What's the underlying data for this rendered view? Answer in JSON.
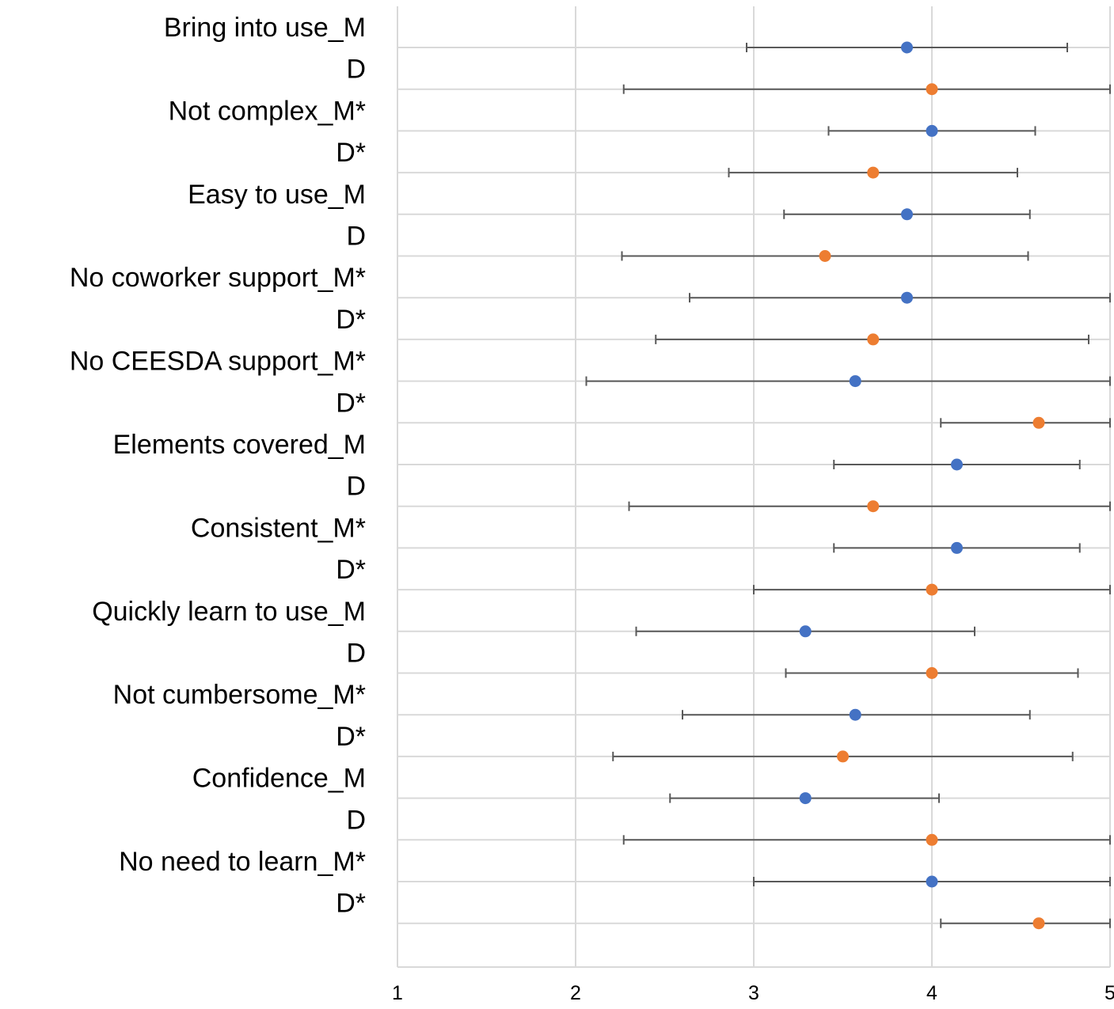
{
  "chart_data": {
    "type": "scatter",
    "orientation": "horizontal",
    "title": "",
    "xlabel": "",
    "ylabel": "",
    "xlim": [
      1,
      5
    ],
    "x_ticks": [
      1,
      2,
      3,
      4,
      5
    ],
    "grid": true,
    "legend": "none",
    "colors": {
      "M": "#4472C4",
      "D": "#ED7D31",
      "error_bar": "#595959",
      "grid": "#D9D9D9"
    },
    "categories": [
      "Bring into use_M",
      "D",
      "Not complex_M*",
      "D*",
      "Easy to use_M",
      "D",
      "No coworker support_M*",
      "D*",
      "No CEESDA support_M*",
      "D*",
      "Elements covered_M",
      "D",
      "Consistent_M*",
      "D*",
      "Quickly learn to use_M",
      "D",
      "Not cumbersome_M*",
      "D*",
      "Confidence_M",
      "D",
      "No need to learn_M*",
      "D*"
    ],
    "points": [
      {
        "group": "M",
        "value": 3.86,
        "err_low": 2.96,
        "err_high": 4.76
      },
      {
        "group": "D",
        "value": 4.0,
        "err_low": 2.27,
        "err_high": 5.0
      },
      {
        "group": "M",
        "value": 4.0,
        "err_low": 3.42,
        "err_high": 4.58
      },
      {
        "group": "D",
        "value": 3.67,
        "err_low": 2.86,
        "err_high": 4.48
      },
      {
        "group": "M",
        "value": 3.86,
        "err_low": 3.17,
        "err_high": 4.55
      },
      {
        "group": "D",
        "value": 3.4,
        "err_low": 2.26,
        "err_high": 4.54
      },
      {
        "group": "M",
        "value": 3.86,
        "err_low": 2.64,
        "err_high": 5.0
      },
      {
        "group": "D",
        "value": 3.67,
        "err_low": 2.45,
        "err_high": 4.88
      },
      {
        "group": "M",
        "value": 3.57,
        "err_low": 2.06,
        "err_high": 5.0
      },
      {
        "group": "D",
        "value": 4.6,
        "err_low": 4.05,
        "err_high": 5.0
      },
      {
        "group": "M",
        "value": 4.14,
        "err_low": 3.45,
        "err_high": 4.83
      },
      {
        "group": "D",
        "value": 3.67,
        "err_low": 2.3,
        "err_high": 5.0
      },
      {
        "group": "M",
        "value": 4.14,
        "err_low": 3.45,
        "err_high": 4.83
      },
      {
        "group": "D",
        "value": 4.0,
        "err_low": 3.0,
        "err_high": 5.0
      },
      {
        "group": "M",
        "value": 3.29,
        "err_low": 2.34,
        "err_high": 4.24
      },
      {
        "group": "D",
        "value": 4.0,
        "err_low": 3.18,
        "err_high": 4.82
      },
      {
        "group": "M",
        "value": 3.57,
        "err_low": 2.6,
        "err_high": 4.55
      },
      {
        "group": "D",
        "value": 3.5,
        "err_low": 2.21,
        "err_high": 4.79
      },
      {
        "group": "M",
        "value": 3.29,
        "err_low": 2.53,
        "err_high": 4.04
      },
      {
        "group": "D",
        "value": 4.0,
        "err_low": 2.27,
        "err_high": 5.0
      },
      {
        "group": "M",
        "value": 4.0,
        "err_low": 3.0,
        "err_high": 5.0
      },
      {
        "group": "D",
        "value": 4.6,
        "err_low": 4.05,
        "err_high": 5.0
      }
    ]
  }
}
